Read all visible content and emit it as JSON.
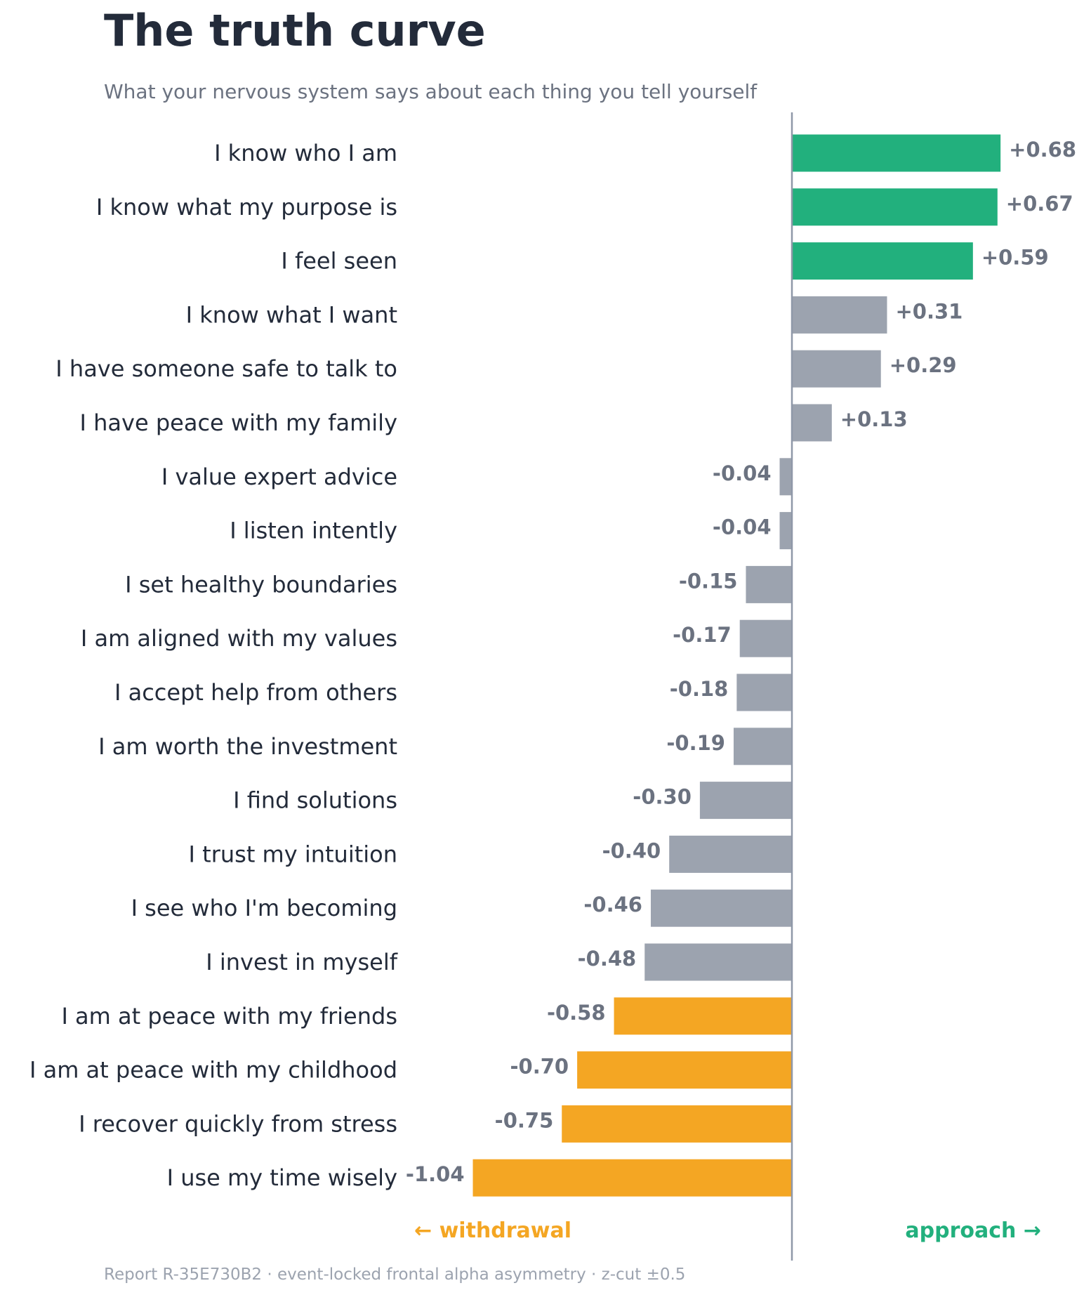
{
  "title": "The truth curve",
  "subtitle": "What your nervous system says about each thing you tell yourself",
  "footer": "Report R-35E730B2  ·  event-locked frontal alpha asymmetry  ·  z-cut ±0.5",
  "direction_labels": {
    "left": "← withdrawal",
    "right": "approach →"
  },
  "colors": {
    "positive": "#22b07d",
    "neutral": "#9ca3af",
    "negative": "#f4a623",
    "axis": "#8f98a8",
    "text": "#232b3a",
    "value_text": "#6b7280"
  },
  "chart_data": {
    "type": "bar",
    "orientation": "horizontal",
    "title": "The truth curve",
    "subtitle": "What your nervous system says about each thing you tell yourself",
    "z_cut": 0.5,
    "xlim": [
      -1.04,
      0.68
    ],
    "categories": [
      "I know who I am",
      "I know what my purpose is",
      "I feel seen",
      "I know what I want",
      "I have someone safe to talk to",
      "I have peace with my family",
      "I value expert advice",
      "I listen intently",
      "I set healthy boundaries",
      "I am aligned with my values",
      "I accept help from others",
      "I am worth the investment",
      "I find solutions",
      "I trust my intuition",
      "I see who I'm becoming",
      "I invest in myself",
      "I am at peace with my friends",
      "I am at peace with my childhood",
      "I recover quickly from stress",
      "I use my time wisely"
    ],
    "values": [
      0.68,
      0.67,
      0.59,
      0.31,
      0.29,
      0.13,
      -0.04,
      -0.04,
      -0.15,
      -0.17,
      -0.18,
      -0.19,
      -0.3,
      -0.4,
      -0.46,
      -0.48,
      -0.58,
      -0.7,
      -0.75,
      -1.04
    ],
    "value_labels": [
      "+0.68",
      "+0.67",
      "+0.59",
      "+0.31",
      "+0.29",
      "+0.13",
      "-0.04",
      "-0.04",
      "-0.15",
      "-0.17",
      "-0.18",
      "-0.19",
      "-0.30",
      "-0.40",
      "-0.46",
      "-0.48",
      "-0.58",
      "-0.70",
      "-0.75",
      "-1.04"
    ],
    "grid": false,
    "legend": "none"
  }
}
